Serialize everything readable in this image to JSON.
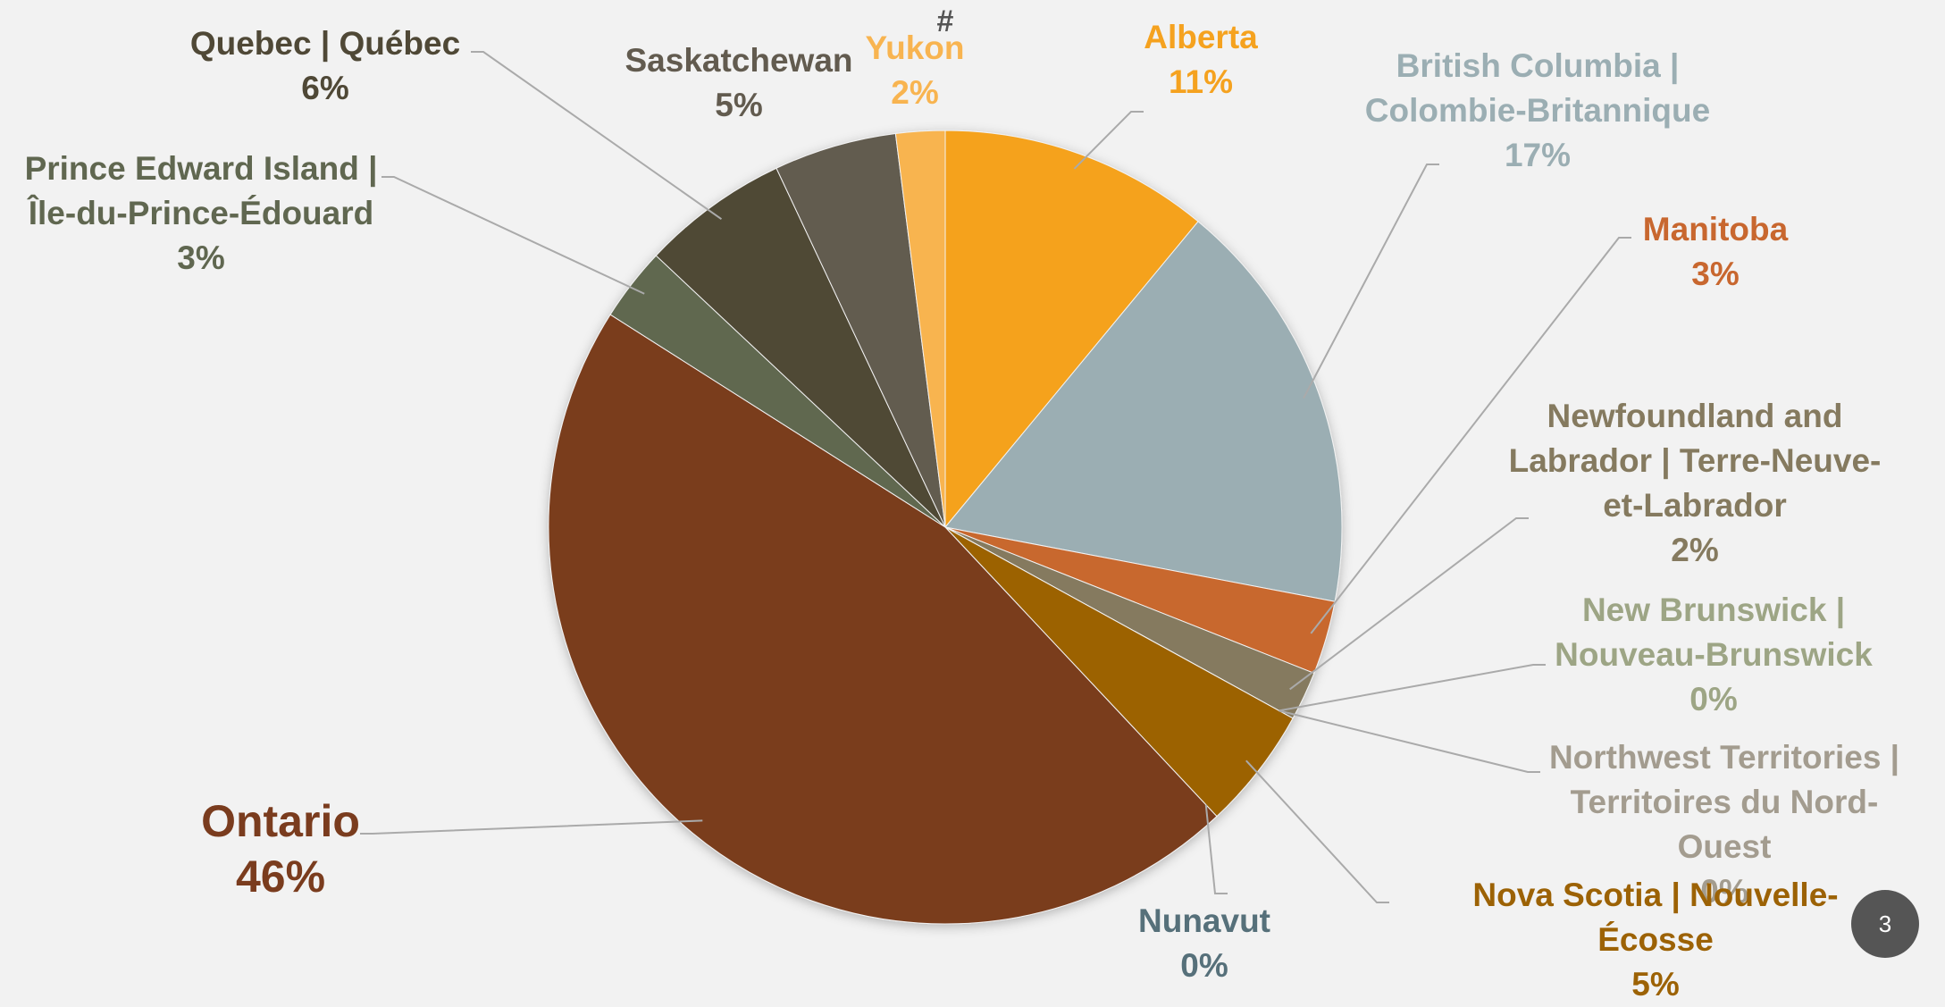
{
  "chart_data": {
    "type": "pie",
    "categories": [
      "Alberta",
      "British Columbia | Colombie-Britannique",
      "Manitoba",
      "Newfoundland and Labrador | Terre-Neuve-et-Labrador",
      "New Brunswick | Nouveau-Brunswick",
      "Northwest Territories | Territoires du Nord-Ouest",
      "Nova Scotia | Nouvelle-Écosse",
      "Nunavut",
      "Ontario",
      "Prince Edward Island | Île-du-Prince-Édouard",
      "Quebec | Québec",
      "Saskatchewan",
      "Yukon"
    ],
    "values": [
      11,
      17,
      3,
      2,
      0,
      0,
      5,
      0,
      46,
      3,
      6,
      5,
      2
    ],
    "value_labels": [
      "11%",
      "17%",
      "3%",
      "2%",
      "0%",
      "0%",
      "5%",
      "0%",
      "46%",
      "3%",
      "6%",
      "5%",
      "2%"
    ],
    "colors": [
      "#f5a21f",
      "#9baeb3",
      "#c8672f",
      "#857a5f",
      "#9da585",
      "#a39c8f",
      "#9c6205",
      "#56707a",
      "#7a3c1e",
      "#606750",
      "#4f4836",
      "#625b4f",
      "#f8b450"
    ],
    "annotation": "#"
  },
  "page_number": "3"
}
